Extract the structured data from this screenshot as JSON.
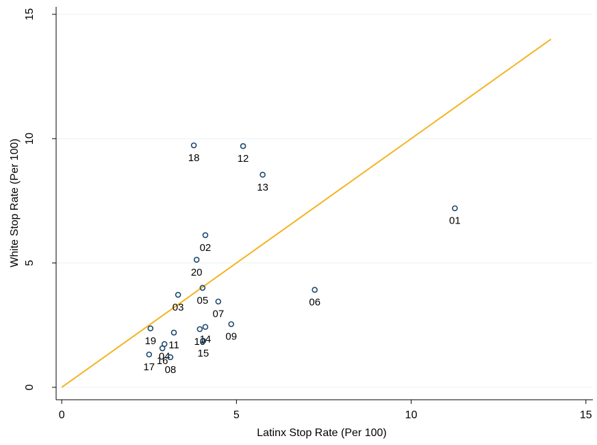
{
  "chart_data": {
    "type": "scatter",
    "x_label": "Latinx Stop Rate (Per 100)",
    "y_label": "White Stop Rate (Per 100)",
    "xlim": [
      -0.16,
      15.2
    ],
    "ylim": [
      -0.5,
      15.3
    ],
    "xticks": [
      0,
      5,
      10,
      15
    ],
    "yticks": [
      0,
      5,
      10,
      15
    ],
    "grid": true,
    "series": [
      {
        "color": "#1a476f",
        "x": [
          11.25,
          4.11,
          3.33,
          2.94,
          4.03,
          7.24,
          4.48,
          3.11,
          4.85,
          3.95,
          3.21,
          5.19,
          5.75,
          4.11,
          4.05,
          2.88,
          2.5,
          3.78,
          2.54,
          3.86
        ],
        "values": [
          7.2,
          6.12,
          3.72,
          1.74,
          4.0,
          3.92,
          3.45,
          1.21,
          2.54,
          2.34,
          2.2,
          9.7,
          8.55,
          2.43,
          1.87,
          1.57,
          1.32,
          9.73,
          2.37,
          5.13
        ],
        "point_labels": [
          "01",
          "02",
          "03",
          "04",
          "05",
          "06",
          "07",
          "08",
          "09",
          "10",
          "11",
          "12",
          "13",
          "14",
          "15",
          "16",
          "17",
          "18",
          "19",
          "20"
        ]
      }
    ],
    "reference_line": {
      "color": "#f4b321",
      "x": [
        0,
        14
      ],
      "y": [
        0,
        14
      ]
    }
  }
}
